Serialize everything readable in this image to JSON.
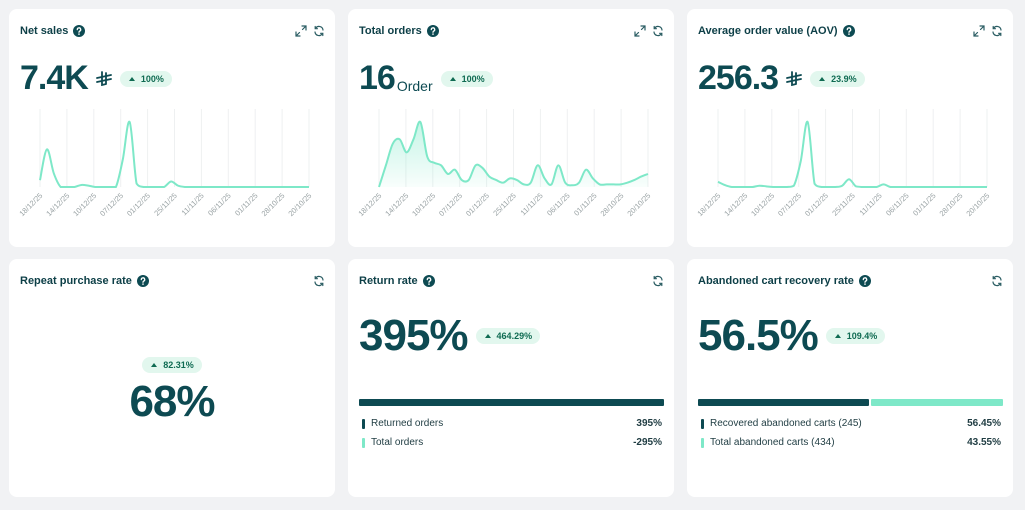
{
  "cards": [
    {
      "title": "Net sales",
      "value": "7.4K",
      "badge": "100%",
      "chart": {
        "color": "#7ee8c8",
        "area": false,
        "labels": [
          "18/12/25",
          "14/12/25",
          "10/12/25",
          "07/12/25",
          "01/12/25",
          "25/11/25",
          "11/11/25",
          "06/11/25",
          "01/11/25",
          "28/10/25",
          "20/10/25"
        ],
        "values": [
          10,
          55,
          20,
          0,
          0,
          0,
          3,
          2,
          0,
          0,
          0,
          0,
          40,
          95,
          5,
          0,
          0,
          0,
          0,
          8,
          2,
          0,
          0,
          0,
          0,
          0,
          0,
          0,
          0,
          0,
          0,
          0,
          0,
          0,
          0,
          0,
          0,
          0,
          0,
          0
        ]
      }
    },
    {
      "title": "Total orders",
      "value": "16",
      "unit": "Order",
      "badge": "100%",
      "chart": {
        "color": "#7ee8c8",
        "area": true,
        "labels": [
          "18/12/25",
          "14/12/25",
          "10/12/25",
          "07/12/25",
          "01/12/25",
          "25/11/25",
          "11/11/25",
          "06/11/25",
          "01/11/25",
          "28/10/25",
          "20/10/25"
        ],
        "values": [
          0,
          25,
          50,
          55,
          40,
          55,
          75,
          35,
          28,
          25,
          15,
          20,
          8,
          8,
          25,
          22,
          12,
          8,
          5,
          10,
          8,
          3,
          5,
          25,
          10,
          3,
          25,
          5,
          2,
          5,
          20,
          10,
          3,
          3,
          3,
          3,
          5,
          8,
          12,
          15
        ]
      }
    },
    {
      "title": "Average order value (AOV)",
      "value": "256.3",
      "badge": "23.9%",
      "chart": {
        "color": "#7ee8c8",
        "area": false,
        "labels": [
          "18/12/25",
          "14/12/25",
          "10/12/25",
          "07/12/25",
          "01/12/25",
          "25/11/25",
          "11/11/25",
          "06/11/25",
          "01/11/25",
          "28/10/25",
          "20/10/25"
        ],
        "values": [
          8,
          3,
          0,
          0,
          0,
          0,
          2,
          1,
          0,
          0,
          0,
          2,
          40,
          100,
          5,
          0,
          0,
          0,
          2,
          12,
          1,
          0,
          0,
          0,
          4,
          0,
          0,
          0,
          0,
          0,
          0,
          0,
          0,
          0,
          0,
          0,
          0,
          0,
          0,
          0
        ]
      }
    },
    {
      "title": "Repeat purchase rate",
      "value": "68%",
      "badge": "82.31%",
      "centered": true
    },
    {
      "title": "Return rate",
      "value": "395%",
      "badge": "464.29%",
      "breakdown": [
        {
          "label": "Returned orders",
          "value": 395,
          "value_label": "395%",
          "color": "#0d4a52"
        },
        {
          "label": "Total orders",
          "value": -295,
          "value_label": "-295%",
          "color": "#7ee8c8"
        }
      ]
    },
    {
      "title": "Abandoned cart recovery rate",
      "value": "56.5%",
      "badge": "109.4%",
      "breakdown": [
        {
          "label": "Recovered abandoned carts (245)",
          "value": 56.45,
          "value_label": "56.45%",
          "color": "#0d4a52"
        },
        {
          "label": "Total abandoned carts (434)",
          "value": 43.55,
          "value_label": "43.55%",
          "color": "#7ee8c8"
        }
      ]
    }
  ]
}
